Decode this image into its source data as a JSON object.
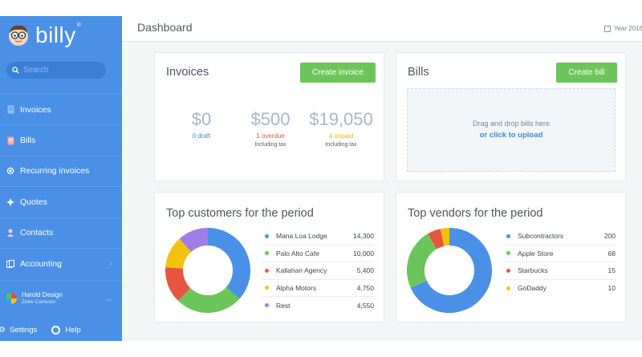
{
  "app": {
    "logo_text": "billy",
    "logo_reg": "®"
  },
  "search": {
    "placeholder": "Search"
  },
  "nav": [
    {
      "label": "Invoices",
      "icon": "invoice-icon"
    },
    {
      "label": "Bills",
      "icon": "bill-icon"
    },
    {
      "label": "Recurring invoices",
      "icon": "recurring-icon"
    },
    {
      "label": "Quotes",
      "icon": "quote-icon"
    },
    {
      "label": "Contacts",
      "icon": "contacts-icon"
    },
    {
      "label": "Accounting",
      "icon": "accounting-icon"
    }
  ],
  "user": {
    "name": "Harold Design",
    "sub": "Zeke Camusio"
  },
  "bottom": {
    "settings": "Settings",
    "help": "Help"
  },
  "page": {
    "title": "Dashboard",
    "year": "Year 2016"
  },
  "invoices": {
    "title": "Invoices",
    "button": "Create invoice",
    "stats": [
      {
        "value": "$0",
        "label": "0 draft",
        "note": "",
        "color": "#3d8ad8"
      },
      {
        "value": "$500",
        "label": "1 overdue",
        "note": "Including tax",
        "color": "#e8553e"
      },
      {
        "value": "$19,050",
        "label": "4 unpaid",
        "note": "Including tax",
        "color": "#f2b90f"
      }
    ]
  },
  "bills": {
    "title": "Bills",
    "button": "Create bill",
    "drop_text": "Drag and drop bills here",
    "upload_link": "or click to upload"
  },
  "customers": {
    "title": "Top customers for the period",
    "items": [
      {
        "name": "Mana Loa Lodge",
        "value": "14,300",
        "amount": 14300,
        "color": "#4a90e6"
      },
      {
        "name": "Palo Alto Cafe",
        "value": "10,000",
        "amount": 10000,
        "color": "#6cc559"
      },
      {
        "name": "Kallahan Agency",
        "value": "5,400",
        "amount": 5400,
        "color": "#e8553e"
      },
      {
        "name": "Alpha Motors",
        "value": "4,750",
        "amount": 4750,
        "color": "#f4c20d"
      },
      {
        "name": "Rest",
        "value": "4,550",
        "amount": 4550,
        "color": "#a07ee6"
      }
    ]
  },
  "vendors": {
    "title": "Top vendors for the period",
    "items": [
      {
        "name": "Subcontractors",
        "value": "200",
        "amount": 200,
        "color": "#4a90e6"
      },
      {
        "name": "Apple Store",
        "value": "68",
        "amount": 68,
        "color": "#6cc559"
      },
      {
        "name": "Starbucks",
        "value": "15",
        "amount": 15,
        "color": "#e8553e"
      },
      {
        "name": "GoDaddy",
        "value": "10",
        "amount": 10,
        "color": "#f4c20d"
      }
    ]
  }
}
